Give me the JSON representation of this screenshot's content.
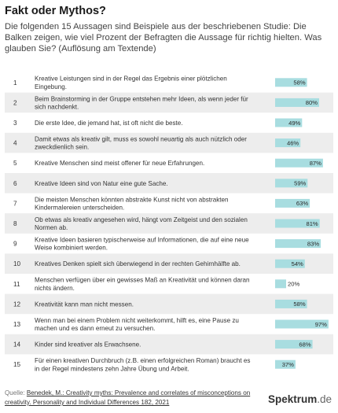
{
  "header": {
    "title": "Fakt oder Mythos?",
    "subtitle": "Die folgenden 15 Aussagen sind Beispiele aus der beschriebenen Studie: Die Balken zeigen, wie viel Prozent der Befragten die Aussage für richtig hielten. Was glauben Sie? (Auflösung am Textende)"
  },
  "chart_data": {
    "type": "bar",
    "orientation": "horizontal",
    "unit": "%",
    "xlim": [
      0,
      100
    ],
    "bar_color": "#a8dde0",
    "stripe_color": "#ededed",
    "rows": [
      {
        "num": "1",
        "lines": [
          "Kreative Leistungen sind in der Regel das Ergebnis einer plötzlichen",
          "Eingebung."
        ],
        "value": 58,
        "label": "58%"
      },
      {
        "num": "2",
        "lines": [
          "Beim Brainstorming in der Gruppe entstehen mehr Ideen, als wenn jeder für",
          "sich nachdenkt."
        ],
        "value": 80,
        "label": "80%"
      },
      {
        "num": "3",
        "lines": [
          "Die erste Idee, die jemand hat, ist oft nicht die beste."
        ],
        "value": 49,
        "label": "49%"
      },
      {
        "num": "4",
        "lines": [
          "Damit etwas als kreativ gilt, muss es sowohl neuartig als auch nützlich oder",
          "zweckdienlich sein."
        ],
        "value": 46,
        "label": "46%"
      },
      {
        "num": "5",
        "lines": [
          "Kreative Menschen sind meist offener für neue Erfahrungen."
        ],
        "value": 87,
        "label": "87%"
      },
      {
        "num": "6",
        "lines": [
          "Kreative Ideen sind von Natur eine gute Sache."
        ],
        "value": 59,
        "label": "59%"
      },
      {
        "num": "7",
        "lines": [
          "Die meisten Menschen könnten abstrakte Kunst nicht von abstrakten",
          "Kindermalereien unterscheiden."
        ],
        "value": 63,
        "label": "63%"
      },
      {
        "num": "8",
        "lines": [
          "Ob etwas als kreativ angesehen wird, hängt vom Zeitgeist und den sozialen",
          "Normen ab."
        ],
        "value": 81,
        "label": "81%"
      },
      {
        "num": "9",
        "lines": [
          "Kreative Ideen basieren typischerweise auf Informationen, die auf eine neue",
          "Weise kombiniert werden."
        ],
        "value": 83,
        "label": "83%"
      },
      {
        "num": "10",
        "lines": [
          "Kreatives Denken spielt sich überwiegend in der rechten Gehirnhälfte ab."
        ],
        "value": 54,
        "label": "54%"
      },
      {
        "num": "11",
        "lines": [
          "Menschen verfügen über ein gewisses Maß an Kreativität und können daran",
          "nichts ändern."
        ],
        "value": 20,
        "label": "20%"
      },
      {
        "num": "12",
        "lines": [
          "Kreativität kann man nicht messen."
        ],
        "value": 58,
        "label": "58%"
      },
      {
        "num": "13",
        "lines": [
          "Wenn man bei einem Problem nicht weiterkommt, hilft es, eine Pause zu",
          "machen und es dann erneut zu versuchen."
        ],
        "value": 97,
        "label": "97%"
      },
      {
        "num": "14",
        "lines": [
          "Kinder sind kreativer als Erwachsene."
        ],
        "value": 68,
        "label": "68%"
      },
      {
        "num": "15",
        "lines": [
          "Für einen kreativen Durchbruch (z.B. einen erfolgreichen Roman) braucht es",
          "in der Regel mindestens zehn Jahre Übung und Arbeit."
        ],
        "value": 37,
        "label": "37%"
      }
    ]
  },
  "footer": {
    "source_label": "Quelle:",
    "source_text": "Benedek, M.: Creativity myths: Prevalence and correlates of misconceptions on creativity. Personality and Individual Differences 182, 2021",
    "logo_name": "Spektrum",
    "logo_suffix": ".de"
  }
}
